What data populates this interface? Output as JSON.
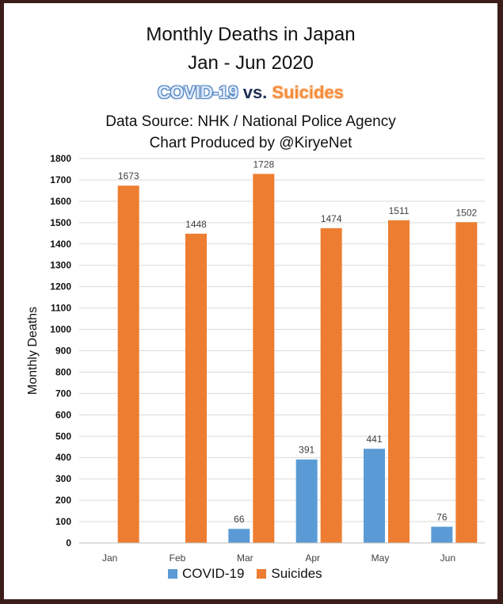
{
  "title": {
    "line1": "Monthly Deaths in Japan",
    "line2": "Jan - Jun 2020",
    "covid_word": "COVID-19",
    "vs_word": "vs.",
    "suicides_word": "Suicides",
    "source": "Data Source: NHK / National Police Agency",
    "credit": "Chart Produced by @KiryeNet"
  },
  "colors": {
    "covid": "#5b9bd5",
    "suicides": "#ed7d31",
    "grid": "#d9d9d9"
  },
  "chart_data": {
    "type": "bar",
    "title": "Monthly Deaths in Japan",
    "xlabel": "",
    "ylabel": "Monthly Deaths",
    "ylim": [
      0,
      1800
    ],
    "ytick_step": 100,
    "grid": true,
    "legend": "bottom",
    "categories": [
      "Jan",
      "Feb",
      "Mar",
      "Apr",
      "May",
      "Jun"
    ],
    "series": [
      {
        "name": "COVID-19",
        "values": [
          null,
          null,
          66,
          391,
          441,
          76
        ],
        "labels": [
          "",
          "",
          "66",
          "391",
          "441",
          "76"
        ]
      },
      {
        "name": "Suicides",
        "values": [
          1673,
          1448,
          1728,
          1474,
          1511,
          1502
        ],
        "labels": [
          "1673",
          "1448",
          "1728",
          "1474",
          "1511",
          "1502"
        ]
      }
    ]
  }
}
